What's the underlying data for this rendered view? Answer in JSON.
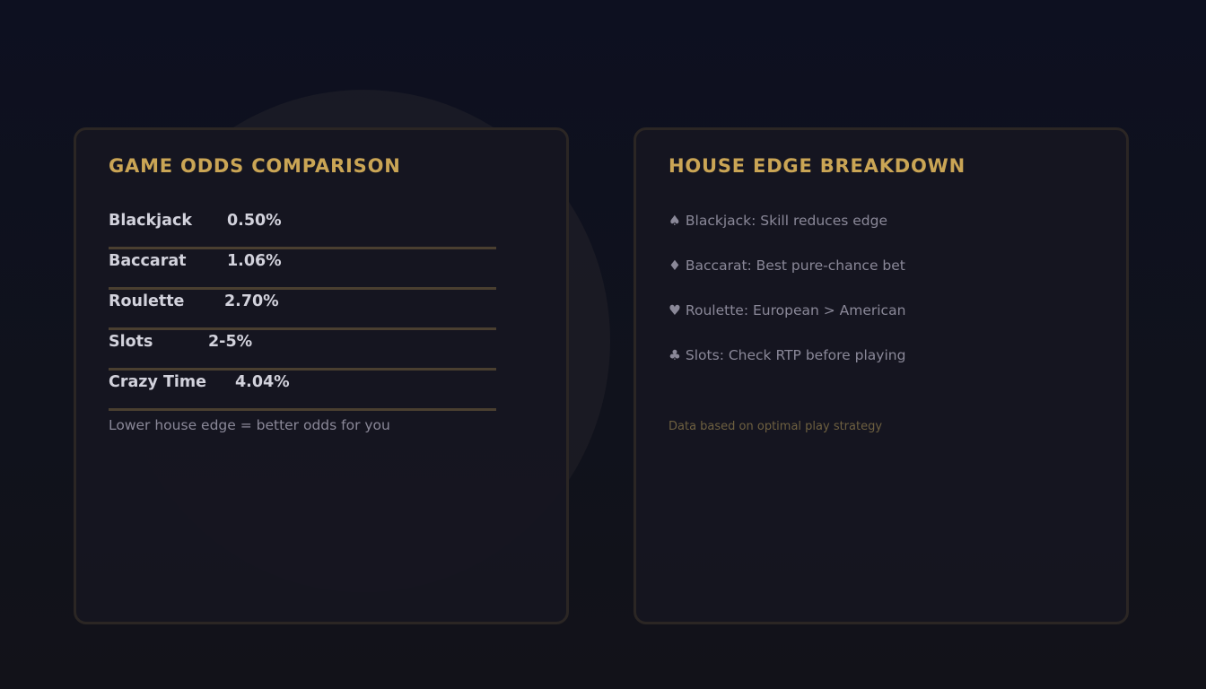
{
  "colors": {
    "accent_gold": "#caa555",
    "row_text": "#d2d2dc",
    "muted_text": "#8a8898",
    "footnote": "#6e6040",
    "divider": "#4a3f30",
    "card_border": "#2b2624",
    "background": "#0f111a"
  },
  "odds_card": {
    "title": "GAME ODDS COMPARISON",
    "rows": [
      {
        "game": "Blackjack",
        "edge": "0.50%"
      },
      {
        "game": "Baccarat",
        "edge": "1.06%"
      },
      {
        "game": "Roulette",
        "edge": "2.70%"
      },
      {
        "game": "Slots",
        "edge": "2-5%"
      },
      {
        "game": "Crazy Time",
        "edge": "4.04%"
      }
    ],
    "note": "Lower house edge = better odds for you"
  },
  "breakdown_card": {
    "title": "HOUSE EDGE BREAKDOWN",
    "tips": [
      {
        "icon": "spade-icon",
        "suit": "♠",
        "text": "Blackjack: Skill reduces edge"
      },
      {
        "icon": "diamond-icon",
        "suit": "♦",
        "text": "Baccarat: Best pure-chance bet"
      },
      {
        "icon": "heart-icon",
        "suit": "♥",
        "text": "Roulette: European > American"
      },
      {
        "icon": "club-icon",
        "suit": "♣",
        "text": "Slots: Check RTP before playing"
      }
    ],
    "note": "Data based on optimal play strategy"
  }
}
